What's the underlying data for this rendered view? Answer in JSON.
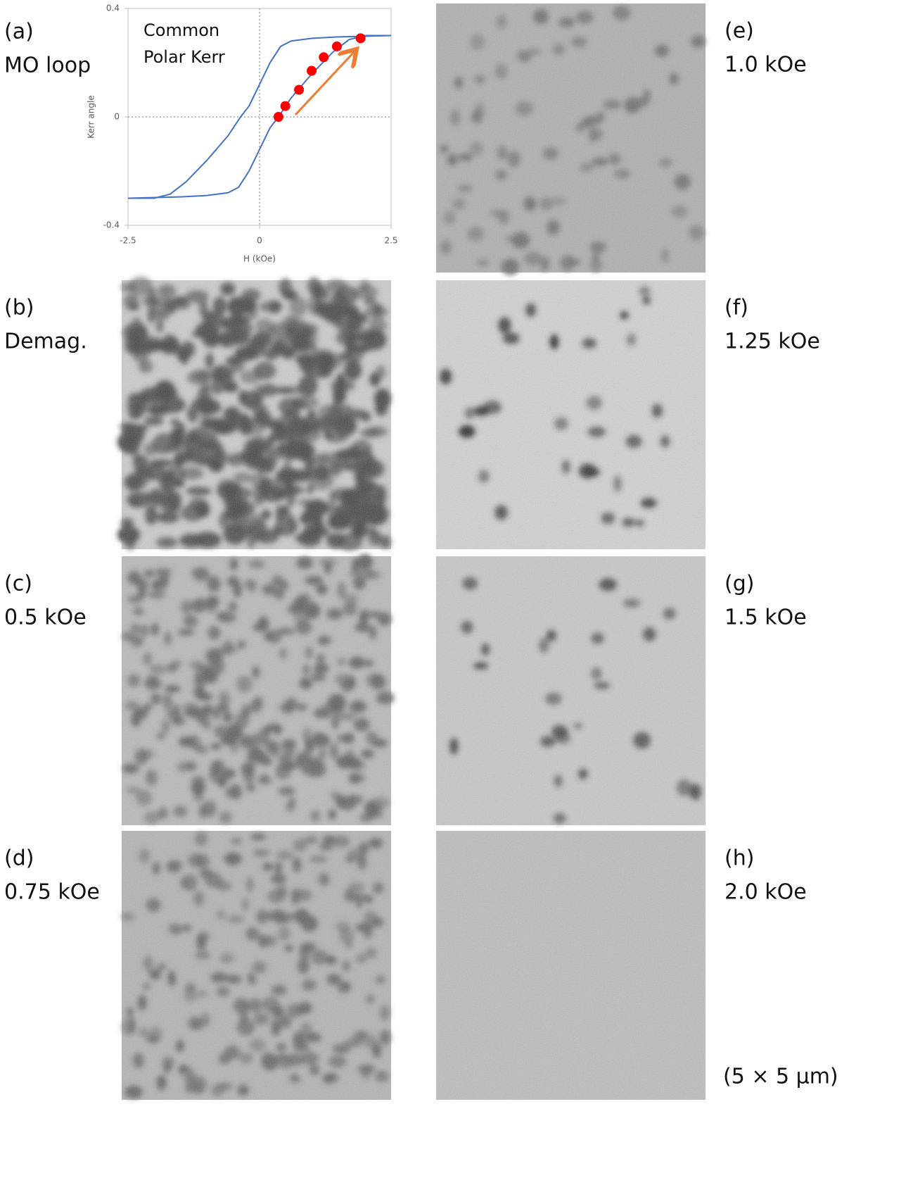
{
  "chart_data": {
    "type": "line",
    "title": "(a)",
    "subtitle": "MO loop",
    "annotation": [
      "Common",
      "Polar Kerr"
    ],
    "x_label": "H (kOe)",
    "y_label": "Kerr angle",
    "xlim": [
      -2.5,
      2.5
    ],
    "xticks": [
      -2.5,
      0,
      2.5
    ],
    "ylim": [
      -0.4,
      0.4
    ],
    "yticks": [
      -0.4,
      0,
      0.4
    ],
    "series": [
      {
        "color": "#4472c4",
        "x": [
          2.5,
          1.5,
          1.0,
          0.6,
          0.4,
          0.2,
          0,
          -0.2,
          -0.36,
          -0.6,
          -1.0,
          -1.4,
          -1.7,
          -2.0,
          -2.5
        ],
        "values": [
          0.3,
          0.295,
          0.29,
          0.28,
          0.26,
          0.2,
          0.12,
          0.04,
          0,
          -0.07,
          -0.16,
          -0.24,
          -0.285,
          -0.3,
          -0.3
        ]
      },
      {
        "color": "#4472c4",
        "x": [
          -2.5,
          -1.5,
          -1.0,
          -0.6,
          -0.4,
          -0.2,
          0,
          0.2,
          0.36,
          0.6,
          1.0,
          1.4,
          1.7,
          2.0,
          2.5
        ],
        "values": [
          -0.3,
          -0.295,
          -0.29,
          -0.28,
          -0.26,
          -0.2,
          -0.12,
          -0.04,
          0,
          0.07,
          0.16,
          0.24,
          0.285,
          0.3,
          0.3
        ]
      }
    ],
    "markers": {
      "color": "#ff0000",
      "x": [
        0.36,
        0.49,
        0.75,
        0.99,
        1.22,
        1.47,
        1.92
      ],
      "values": [
        0,
        0.04,
        0.1,
        0.17,
        0.22,
        0.26,
        0.29
      ]
    }
  },
  "panels": [
    {
      "label": "(b)",
      "caption": "Demag."
    },
    {
      "label": "(c)",
      "caption": "0.5 kOe"
    },
    {
      "label": "(d)",
      "caption": "0.75 kOe"
    },
    {
      "label": "(e)",
      "caption": "1.0 kOe"
    },
    {
      "label": "(f)",
      "caption": "1.25 kOe"
    },
    {
      "label": "(g)",
      "caption": "1.5 kOe"
    },
    {
      "label": "(h)",
      "caption": "2.0 kOe"
    }
  ],
  "scale_note": "(5 × 5 μm)"
}
